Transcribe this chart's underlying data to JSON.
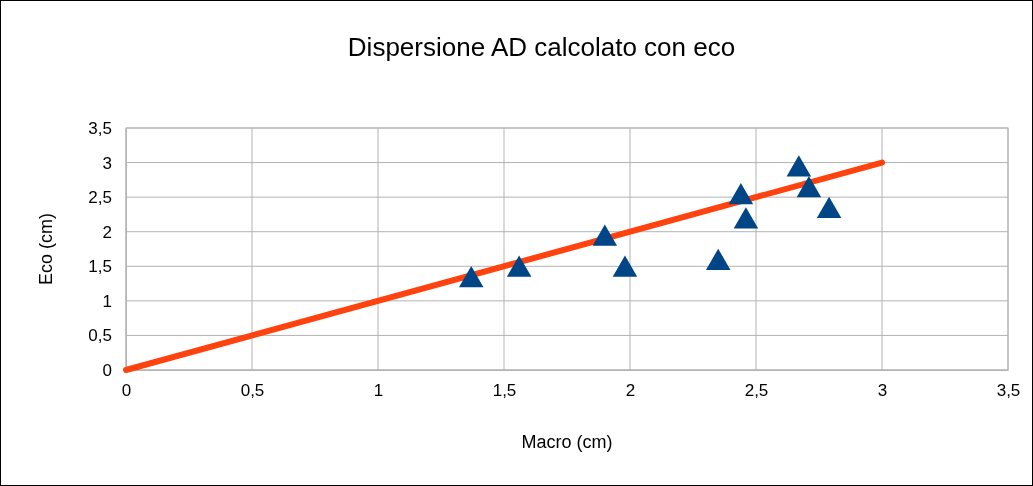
{
  "chart_data": {
    "type": "scatter",
    "title": "Dispersione AD calcolato con eco",
    "xlabel": "Macro (cm)",
    "ylabel": "Eco (cm)",
    "xlim": [
      0,
      3.5
    ],
    "ylim": [
      0,
      3.5
    ],
    "xticks": [
      0,
      {
        "value": 0.5,
        "label": "0,5"
      },
      1,
      {
        "value": 1.5,
        "label": "1,5"
      },
      2,
      {
        "value": 2.5,
        "label": "2,5"
      },
      3,
      {
        "value": 3.5,
        "label": "3,5"
      }
    ],
    "yticks": [
      0,
      {
        "value": 0.5,
        "label": "0,5"
      },
      1,
      {
        "value": 1.5,
        "label": "1,5"
      },
      2,
      {
        "value": 2.5,
        "label": "2,5"
      },
      3,
      {
        "value": 3.5,
        "label": "3,5"
      }
    ],
    "grid": true,
    "series": [
      {
        "type": "line",
        "color": "#ff420e",
        "x": [
          0,
          3
        ],
        "values": [
          0,
          3
        ],
        "marker": "none",
        "line_style": "solid"
      },
      {
        "color": "#004586",
        "marker": "triangle",
        "x": [
          1.37,
          1.56,
          1.9,
          1.98,
          2.35,
          2.44,
          2.46,
          2.67,
          2.71,
          2.79
        ],
        "values": [
          1.3,
          1.45,
          1.9,
          1.45,
          1.55,
          2.5,
          2.15,
          2.9,
          2.6,
          2.3
        ]
      }
    ]
  }
}
